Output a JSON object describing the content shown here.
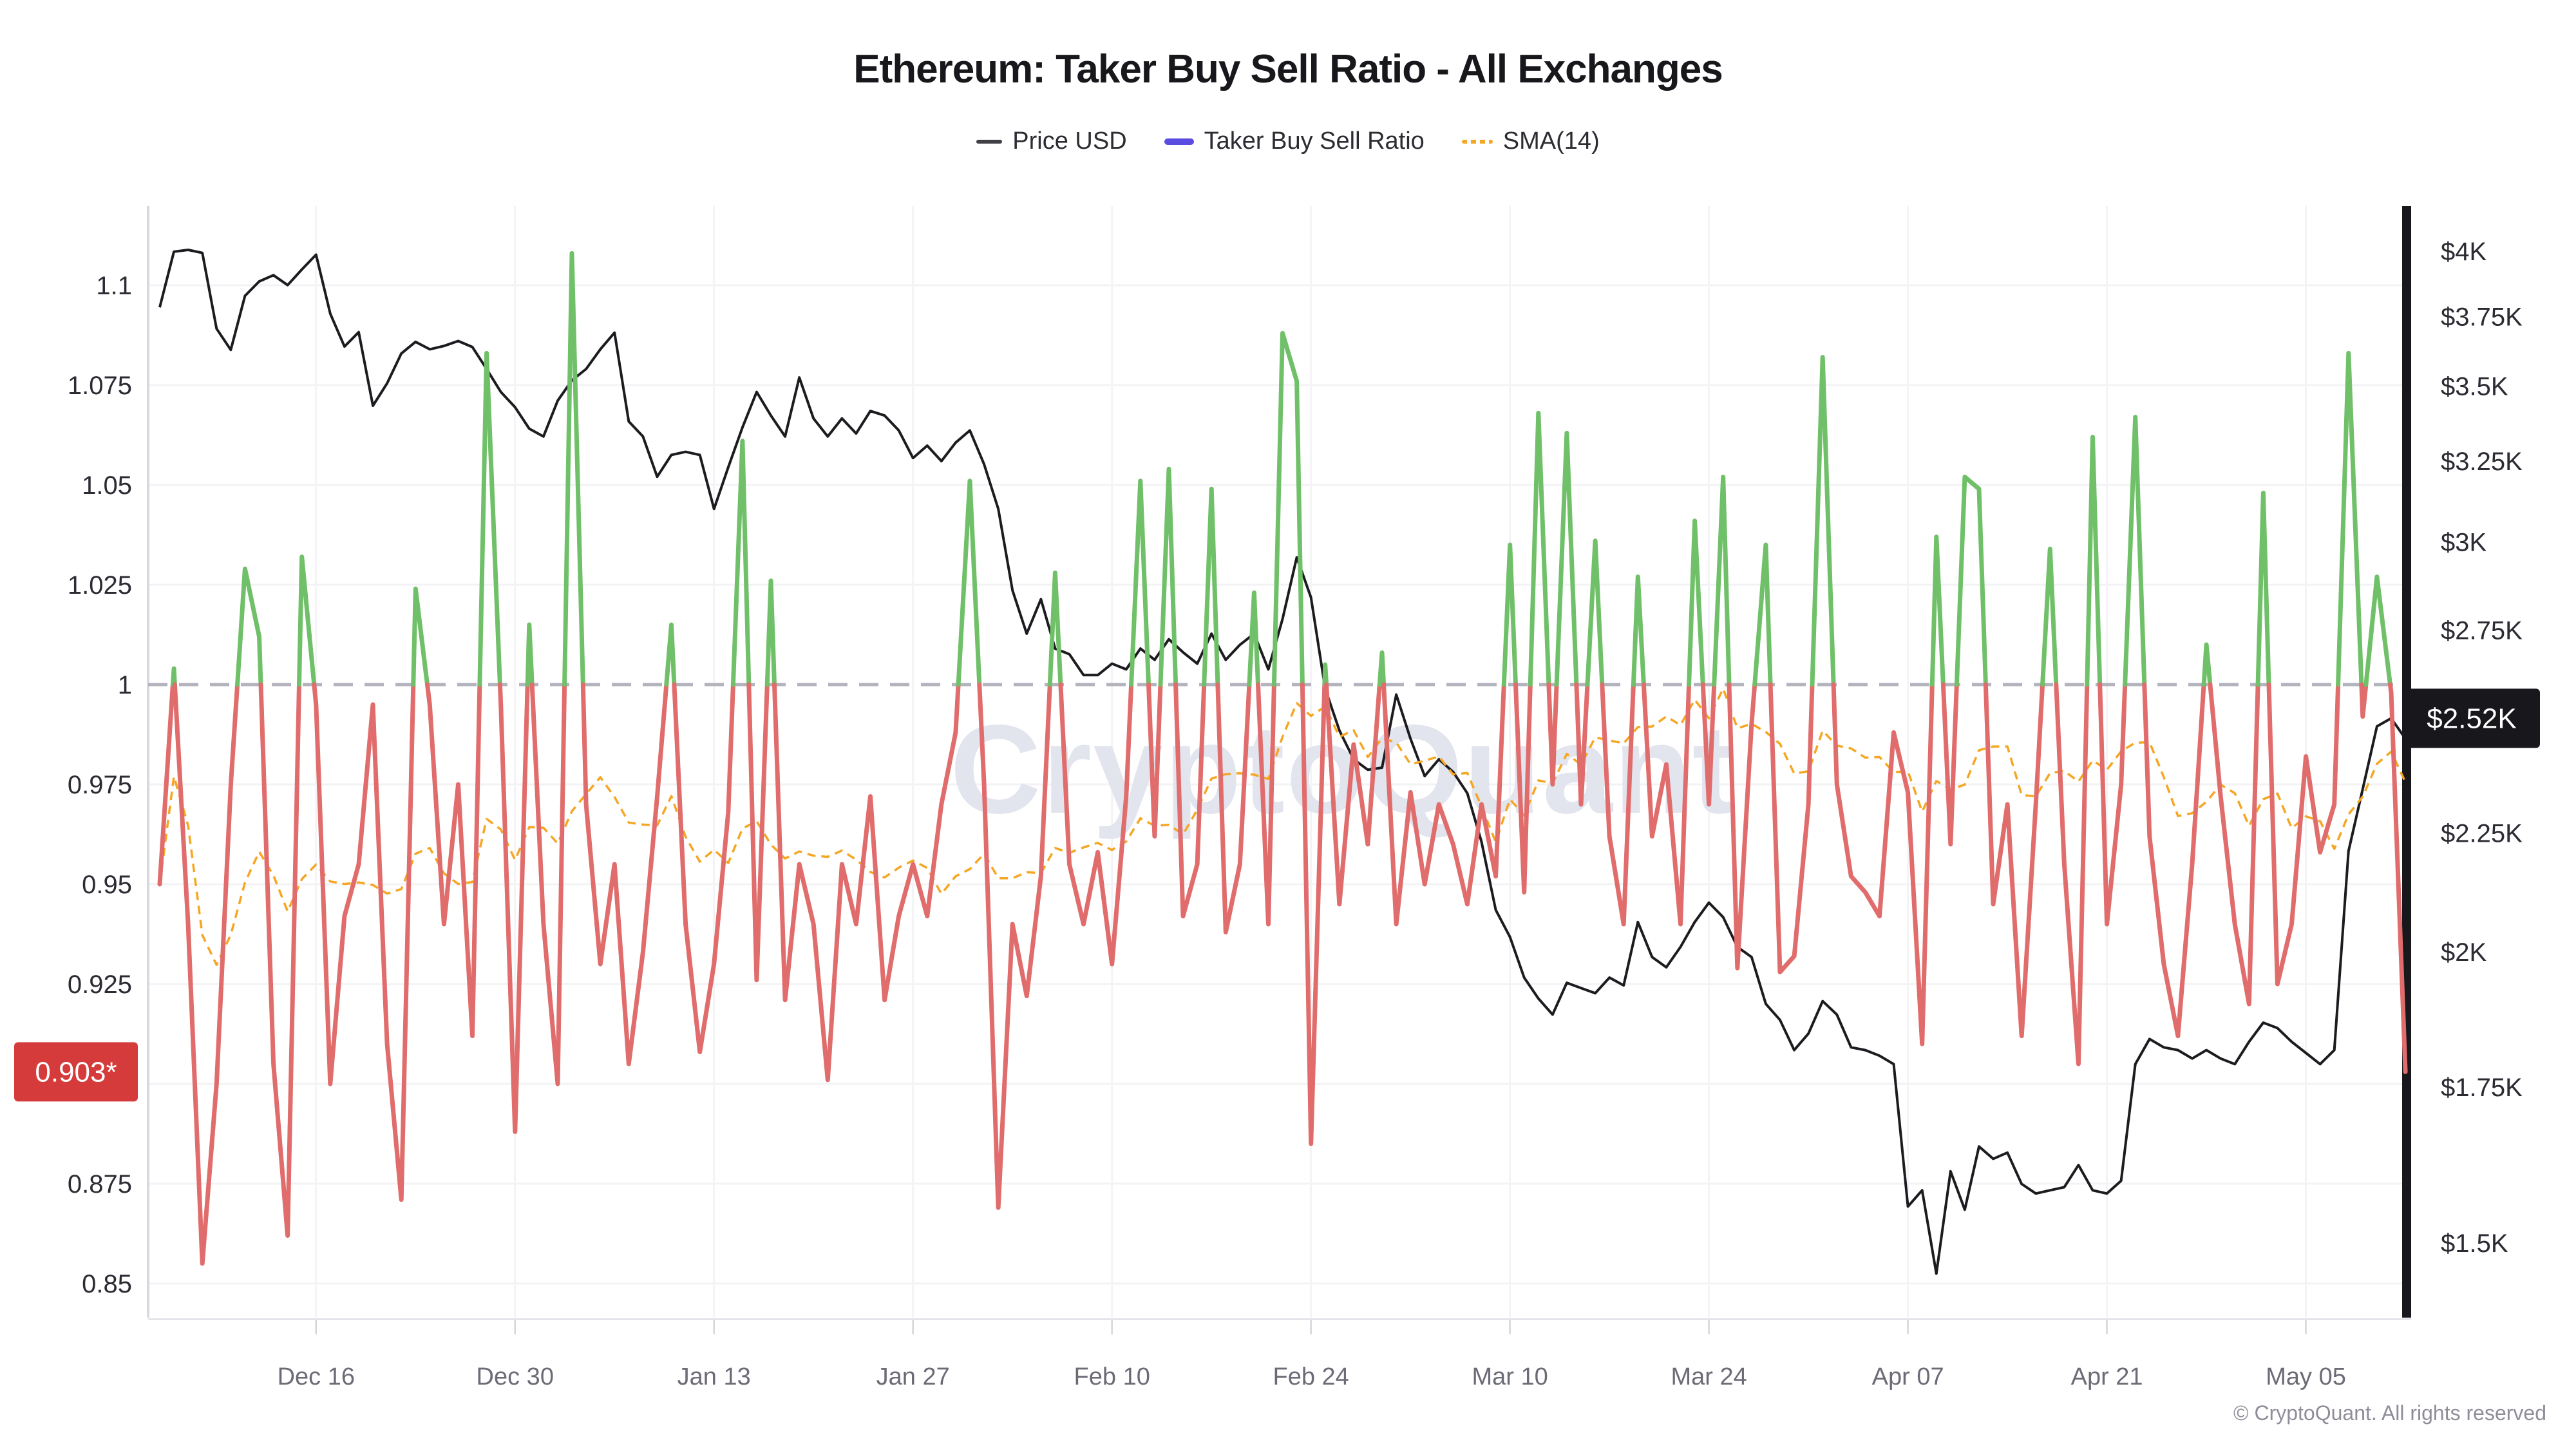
{
  "header": {
    "title": "Ethereum: Taker Buy Sell Ratio - All Exchanges"
  },
  "legend": {
    "items": [
      {
        "label": "Price USD",
        "swatch_color": "#3f3f46",
        "style": "line"
      },
      {
        "label": "Taker Buy Sell Ratio",
        "swatch_color": "#5a4be1",
        "style": "line-thick"
      },
      {
        "label": "SMA(14)",
        "swatch_color": "#f5a623",
        "style": "dotted"
      }
    ]
  },
  "watermark": {
    "text": "CryptoQuant",
    "color": "#e2e4ee"
  },
  "footer": {
    "copyright": "© CryptoQuant. All rights reserved"
  },
  "badges": {
    "ratio": {
      "text": "0.903*",
      "bg": "#d53b3b",
      "fg": "#ffffff",
      "value": 0.903
    },
    "price": {
      "text": "$2.52K",
      "bg": "#17171c",
      "fg": "#ffffff",
      "value": 2520
    }
  },
  "chart_data": {
    "type": "line",
    "title": "Ethereum: Taker Buy Sell Ratio - All Exchanges",
    "x_start_date": "2024-12-05",
    "x_interval": "1 day",
    "x_ticks": [
      {
        "day": 11,
        "label": "Dec 16"
      },
      {
        "day": 25,
        "label": "Dec 30"
      },
      {
        "day": 39,
        "label": "Jan 13"
      },
      {
        "day": 53,
        "label": "Jan 27"
      },
      {
        "day": 67,
        "label": "Feb 10"
      },
      {
        "day": 81,
        "label": "Feb 24"
      },
      {
        "day": 95,
        "label": "Mar 10"
      },
      {
        "day": 109,
        "label": "Mar 24"
      },
      {
        "day": 123,
        "label": "Apr 07"
      },
      {
        "day": 137,
        "label": "Apr 21"
      },
      {
        "day": 151,
        "label": "May 05"
      }
    ],
    "left_axis": {
      "name": "Taker Buy Sell Ratio",
      "range": [
        0.8415,
        1.12
      ],
      "baseline": 1.0,
      "gridline_values": [
        1.1,
        1.075,
        1.05,
        1.025,
        0.975,
        0.95,
        0.925,
        0.9,
        0.875,
        0.85
      ],
      "ticks": [
        {
          "value": 1.1,
          "label": "1.1"
        },
        {
          "value": 1.075,
          "label": "1.075"
        },
        {
          "value": 1.05,
          "label": "1.05"
        },
        {
          "value": 1.025,
          "label": "1.025"
        },
        {
          "value": 1.0,
          "label": "1"
        },
        {
          "value": 0.975,
          "label": "0.975"
        },
        {
          "value": 0.95,
          "label": "0.95"
        },
        {
          "value": 0.925,
          "label": "0.925"
        },
        {
          "value": 0.875,
          "label": "0.875"
        },
        {
          "value": 0.85,
          "label": "0.85"
        }
      ]
    },
    "right_axis": {
      "name": "Price USD",
      "scale": "log",
      "range": [
        1393,
        4182
      ],
      "ticks": [
        {
          "value": 4000,
          "label": "$4K"
        },
        {
          "value": 3750,
          "label": "$3.75K"
        },
        {
          "value": 3500,
          "label": "$3.5K"
        },
        {
          "value": 3250,
          "label": "$3.25K"
        },
        {
          "value": 3000,
          "label": "$3K"
        },
        {
          "value": 2750,
          "label": "$2.75K"
        },
        {
          "value": 2250,
          "label": "$2.25K"
        },
        {
          "value": 2000,
          "label": "$2K"
        },
        {
          "value": 1750,
          "label": "$1.75K"
        },
        {
          "value": 1500,
          "label": "$1.5K"
        }
      ]
    },
    "series": [
      {
        "name": "Price USD",
        "axis": "right",
        "color": "#1b1b20",
        "values": [
          3784,
          3998,
          4005,
          3993,
          3705,
          3628,
          3827,
          3882,
          3906,
          3868,
          3928,
          3986,
          3760,
          3640,
          3692,
          3433,
          3510,
          3615,
          3657,
          3630,
          3642,
          3660,
          3638,
          3560,
          3480,
          3428,
          3356,
          3330,
          3450,
          3520,
          3560,
          3630,
          3690,
          3380,
          3330,
          3200,
          3270,
          3280,
          3270,
          3100,
          3230,
          3360,
          3480,
          3400,
          3330,
          3530,
          3390,
          3330,
          3390,
          3340,
          3415,
          3400,
          3350,
          3260,
          3300,
          3250,
          3310,
          3350,
          3240,
          3100,
          2860,
          2740,
          2835,
          2700,
          2685,
          2630,
          2630,
          2660,
          2645,
          2700,
          2670,
          2725,
          2690,
          2660,
          2740,
          2670,
          2710,
          2740,
          2645,
          2780,
          2955,
          2840,
          2595,
          2490,
          2420,
          2395,
          2400,
          2580,
          2470,
          2380,
          2420,
          2390,
          2340,
          2230,
          2085,
          2030,
          1950,
          1910,
          1880,
          1940,
          1930,
          1920,
          1950,
          1935,
          2060,
          1990,
          1970,
          2010,
          2060,
          2100,
          2070,
          2010,
          1990,
          1900,
          1870,
          1815,
          1845,
          1905,
          1880,
          1820,
          1815,
          1805,
          1790,
          1555,
          1580,
          1455,
          1610,
          1550,
          1650,
          1630,
          1640,
          1590,
          1575,
          1580,
          1585,
          1620,
          1580,
          1575,
          1595,
          1790,
          1835,
          1820,
          1815,
          1800,
          1815,
          1800,
          1790,
          1830,
          1865,
          1855,
          1830,
          1810,
          1790,
          1815,
          2210,
          2350,
          2500,
          2520,
          2470
        ]
      },
      {
        "name": "Taker Buy Sell Ratio",
        "axis": "left",
        "threshold": 1.0,
        "color_above": "#6fc068",
        "color_below": "#e06c6c",
        "legend_color": "#5a4be1",
        "current_value": 0.903,
        "values": [
          0.95,
          1.004,
          0.94,
          0.855,
          0.9,
          0.975,
          1.029,
          1.012,
          0.905,
          0.862,
          1.032,
          0.995,
          0.9,
          0.942,
          0.955,
          0.995,
          0.91,
          0.871,
          1.024,
          0.995,
          0.94,
          0.975,
          0.912,
          1.083,
          0.995,
          0.888,
          1.015,
          0.94,
          0.9,
          1.108,
          0.97,
          0.93,
          0.955,
          0.905,
          0.933,
          0.972,
          1.015,
          0.94,
          0.908,
          0.93,
          0.968,
          1.061,
          0.926,
          1.026,
          0.921,
          0.955,
          0.94,
          0.901,
          0.955,
          0.94,
          0.972,
          0.921,
          0.942,
          0.955,
          0.942,
          0.97,
          0.988,
          1.051,
          0.975,
          0.869,
          0.94,
          0.922,
          0.952,
          1.028,
          0.955,
          0.94,
          0.958,
          0.93,
          0.972,
          1.051,
          0.962,
          1.054,
          0.942,
          0.955,
          1.049,
          0.938,
          0.955,
          1.023,
          0.94,
          1.088,
          1.076,
          0.885,
          1.005,
          0.945,
          0.985,
          0.96,
          1.008,
          0.94,
          0.973,
          0.95,
          0.97,
          0.96,
          0.945,
          0.97,
          0.952,
          1.035,
          0.948,
          1.068,
          0.975,
          1.063,
          0.97,
          1.036,
          0.962,
          0.94,
          1.027,
          0.962,
          0.98,
          0.94,
          1.041,
          0.97,
          1.052,
          0.929,
          0.99,
          1.035,
          0.928,
          0.932,
          0.97,
          1.082,
          0.975,
          0.952,
          0.948,
          0.942,
          0.988,
          0.973,
          0.91,
          1.037,
          0.96,
          1.052,
          1.049,
          0.945,
          0.97,
          0.912,
          0.97,
          1.034,
          0.955,
          0.905,
          1.062,
          0.94,
          0.975,
          1.067,
          0.962,
          0.93,
          0.912,
          0.955,
          1.01,
          0.972,
          0.94,
          0.92,
          1.048,
          0.925,
          0.94,
          0.982,
          0.958,
          0.97,
          1.083,
          0.992,
          1.027,
          0.998,
          0.903
        ]
      },
      {
        "name": "SMA(14)",
        "axis": "left",
        "color": "#f5a623",
        "window": 14,
        "derived_from": "Taker Buy Sell Ratio"
      }
    ]
  }
}
